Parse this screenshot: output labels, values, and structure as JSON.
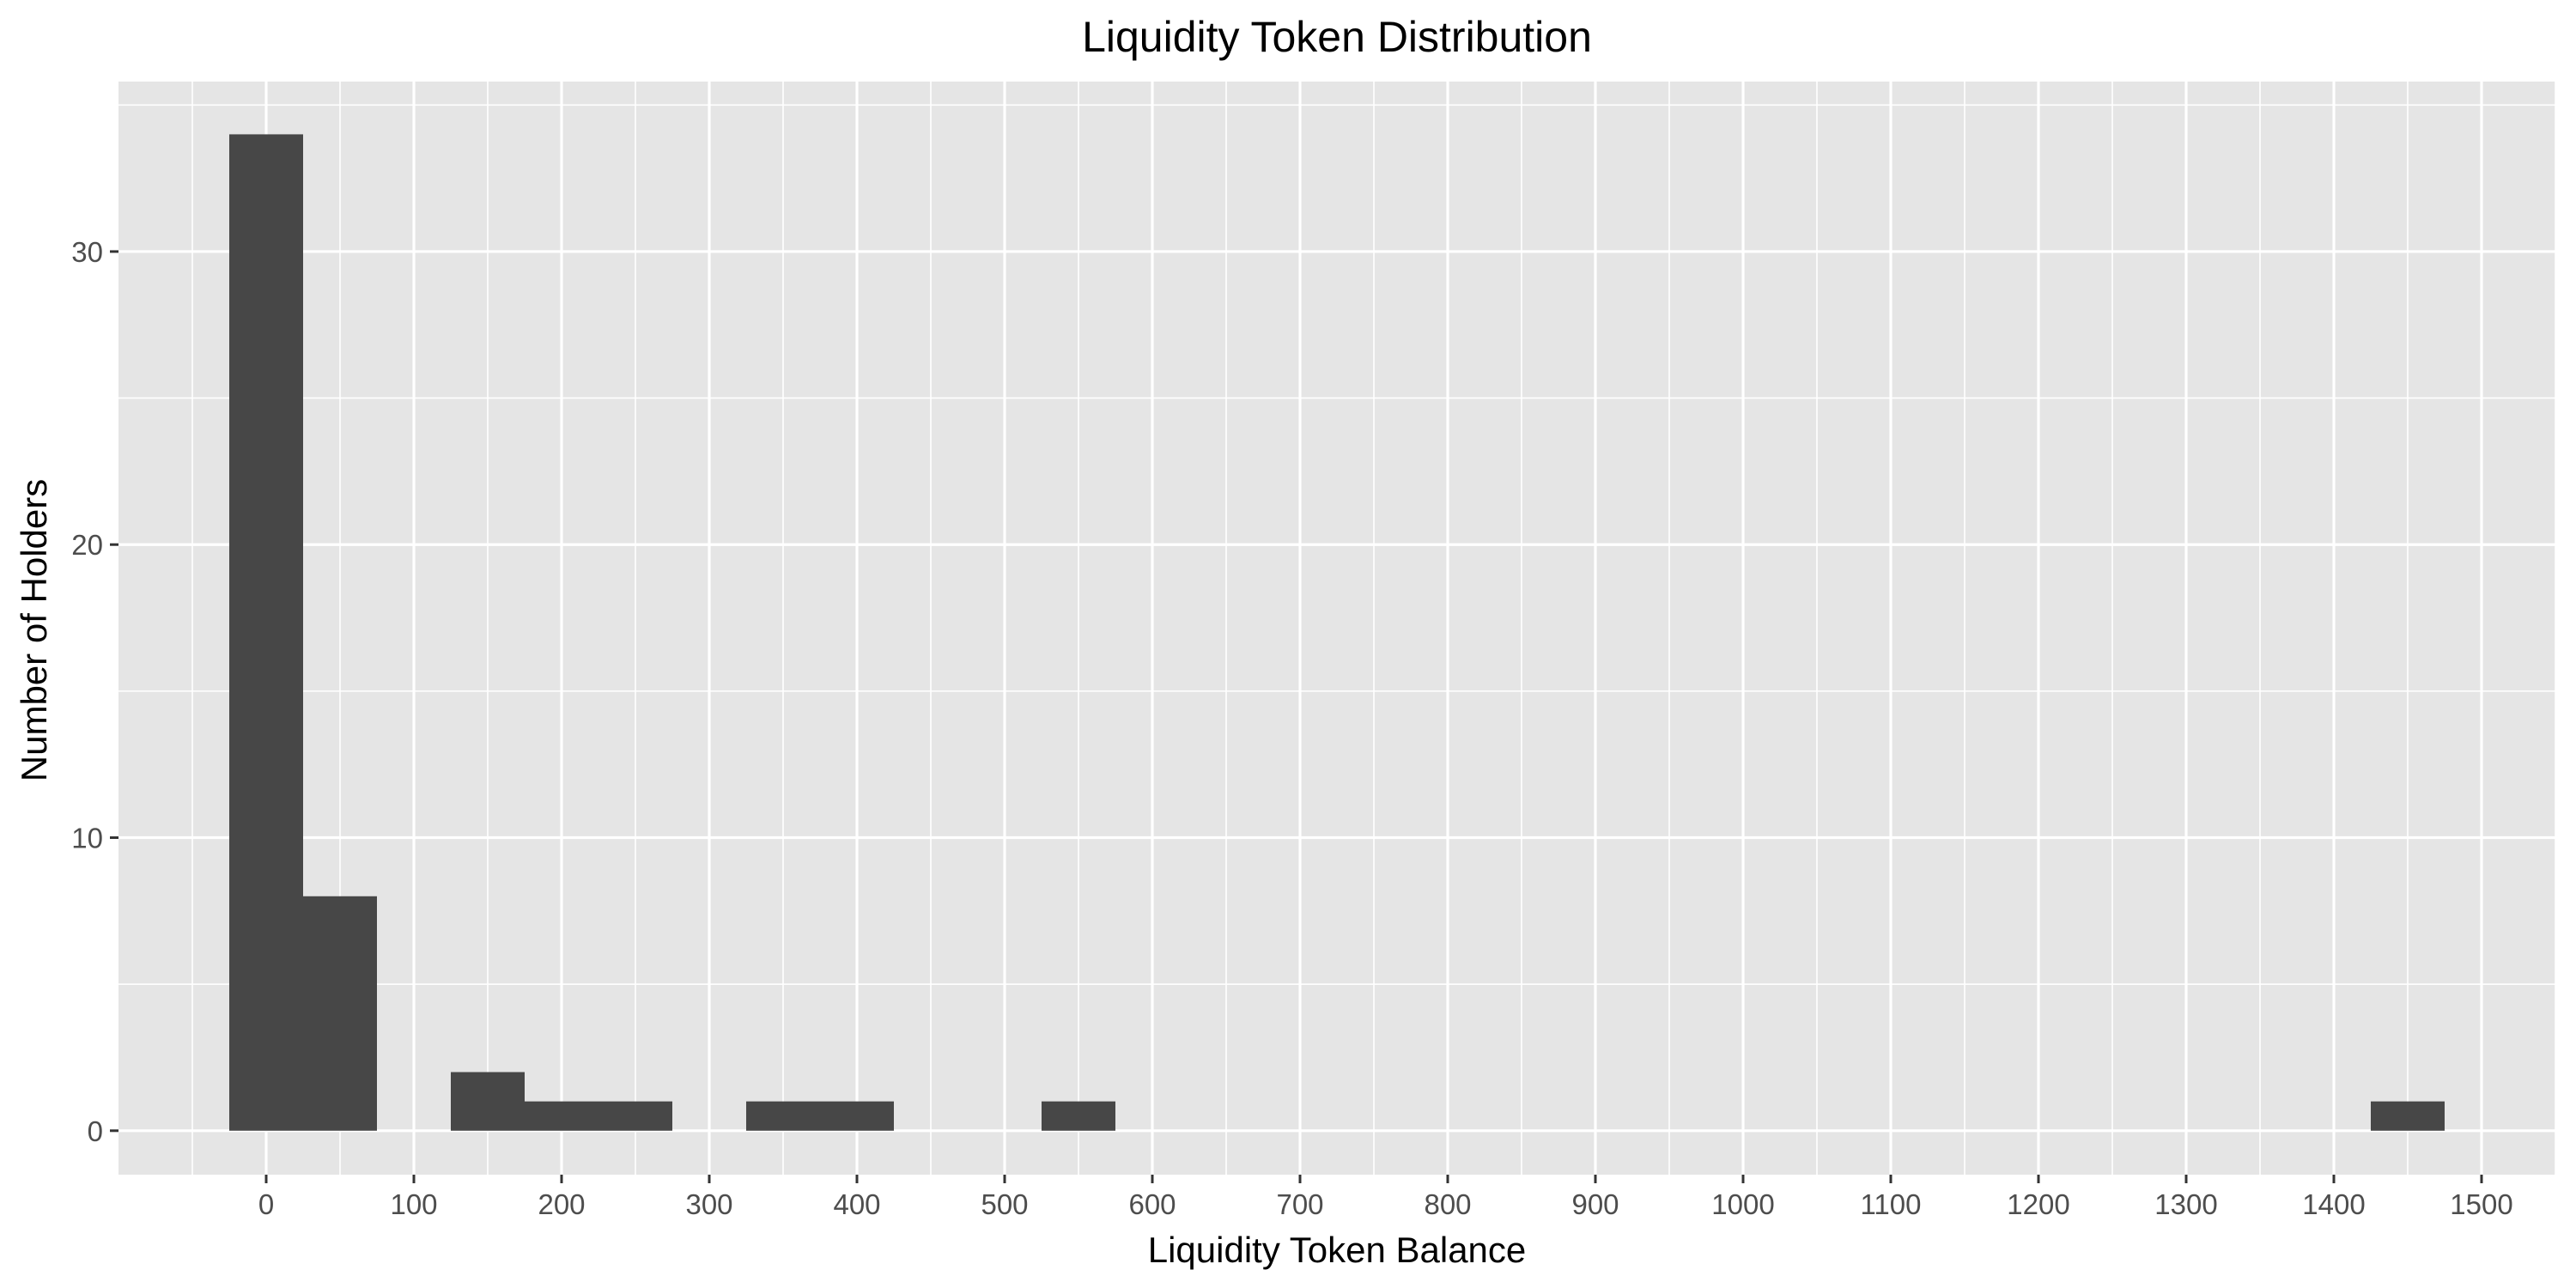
{
  "chart_data": {
    "type": "bar",
    "title": "Liquidity Token Distribution",
    "xlabel": "Liquidity Token Balance",
    "ylabel": "Number of Holders",
    "xlim": [
      -100,
      1550
    ],
    "ylim": [
      -1.5,
      35.8
    ],
    "x_ticks": [
      0,
      100,
      200,
      300,
      400,
      500,
      600,
      700,
      800,
      900,
      1000,
      1100,
      1200,
      1300,
      1400,
      1500
    ],
    "y_ticks": [
      0,
      10,
      20,
      30
    ],
    "bin_width": 50,
    "bins": [
      {
        "x0": -25,
        "x1": 25,
        "count": 34
      },
      {
        "x0": 25,
        "x1": 75,
        "count": 8
      },
      {
        "x0": 125,
        "x1": 175,
        "count": 2
      },
      {
        "x0": 175,
        "x1": 225,
        "count": 1
      },
      {
        "x0": 225,
        "x1": 275,
        "count": 1
      },
      {
        "x0": 325,
        "x1": 375,
        "count": 1
      },
      {
        "x0": 375,
        "x1": 425,
        "count": 1
      },
      {
        "x0": 525,
        "x1": 575,
        "count": 1
      },
      {
        "x0": 1425,
        "x1": 1475,
        "count": 1
      }
    ],
    "grid": true,
    "legend": "none",
    "colors": {
      "panel_background": "#e5e5e5",
      "grid_line": "#ffffff",
      "bar_fill": "#474747",
      "tick_text": "#4d4d4d",
      "text": "#000000"
    }
  }
}
